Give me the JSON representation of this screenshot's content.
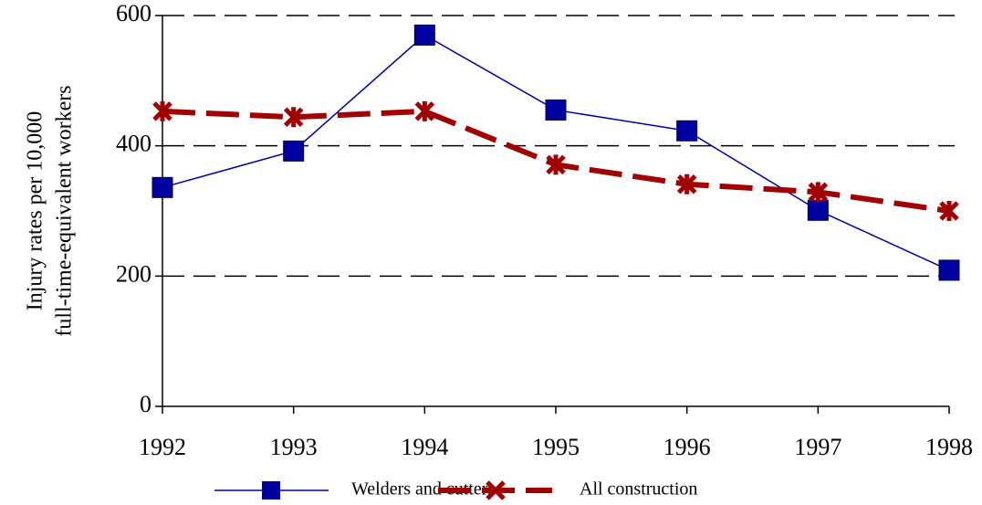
{
  "chart_data": {
    "type": "line",
    "ylabel": [
      "Injury rates per 10,000",
      "full-time-equivalent workers"
    ],
    "categories": [
      "1992",
      "1993",
      "1994",
      "1995",
      "1996",
      "1997",
      "1998"
    ],
    "series": [
      {
        "name": "Welders and cutters",
        "color": "#0000a0",
        "marker": "square",
        "values": [
          336,
          392,
          570,
          455,
          423,
          301,
          209
        ]
      },
      {
        "name": "All construction",
        "color": "#a00000",
        "marker": "x",
        "values": [
          453,
          444,
          453,
          371,
          341,
          329,
          300
        ]
      }
    ],
    "ylim": [
      0,
      600
    ],
    "yticks": [
      0,
      200,
      400,
      600
    ],
    "grid": true
  }
}
